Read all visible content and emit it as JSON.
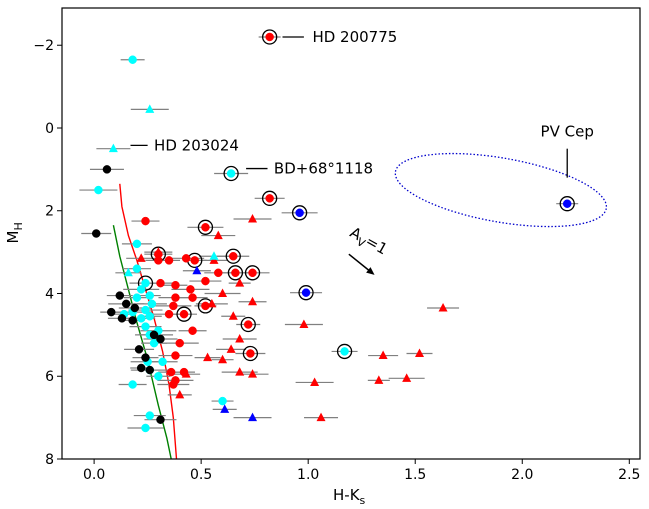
{
  "chart_data": {
    "type": "scatter",
    "xlabel": "H-K",
    "xlabel_sub": "s",
    "ylabel": "M",
    "ylabel_sub": "H",
    "xlim": [
      -0.15,
      2.55
    ],
    "ylim": [
      8,
      -2.9
    ],
    "y_inverted": true,
    "xticks": [
      0.0,
      0.5,
      1.0,
      1.5,
      2.0,
      2.5
    ],
    "xtick_labels": [
      "0.0",
      "0.5",
      "1.0",
      "1.5",
      "2.0",
      "2.5"
    ],
    "yticks": [
      -2,
      0,
      2,
      4,
      6,
      8
    ],
    "ytick_labels": [
      "−2",
      "0",
      "2",
      "4",
      "6",
      "8"
    ],
    "grid": false,
    "colors": {
      "red": "#ff0000",
      "cyan": "#00ffff",
      "blue": "#0000ff",
      "black": "#000000",
      "errorbar": "#808080",
      "red_curve": "#ff0000",
      "green_curve": "#008000",
      "ellipse": "#0000cc"
    },
    "series": [
      {
        "marker": "circle",
        "color": "red",
        "points": [
          [
            0.82,
            -2.2
          ],
          [
            0.52,
            2.4
          ],
          [
            0.65,
            3.1
          ],
          [
            0.3,
            3.05
          ],
          [
            0.47,
            3.2
          ],
          [
            0.66,
            3.5
          ],
          [
            0.74,
            3.5
          ],
          [
            0.82,
            1.7
          ],
          [
            0.3,
            3.2
          ],
          [
            0.35,
            3.2
          ],
          [
            0.43,
            3.15
          ],
          [
            0.52,
            3.7
          ],
          [
            0.58,
            3.5
          ],
          [
            0.38,
            3.8
          ],
          [
            0.45,
            3.9
          ],
          [
            0.38,
            4.1
          ],
          [
            0.46,
            4.1
          ],
          [
            0.42,
            4.5
          ],
          [
            0.52,
            4.3
          ],
          [
            0.37,
            4.3
          ],
          [
            0.35,
            4.5
          ],
          [
            0.46,
            4.9
          ],
          [
            0.72,
            4.75
          ],
          [
            0.4,
            5.2
          ],
          [
            0.38,
            5.5
          ],
          [
            0.73,
            5.45
          ],
          [
            0.36,
            5.9
          ],
          [
            0.42,
            5.9
          ],
          [
            0.38,
            6.1
          ],
          [
            0.37,
            6.2
          ],
          [
            0.24,
            2.25
          ],
          [
            0.31,
            3.75
          ]
        ],
        "circled": [
          [
            0.82,
            -2.2
          ],
          [
            0.52,
            2.4
          ],
          [
            0.65,
            3.1
          ],
          [
            0.3,
            3.05
          ],
          [
            0.47,
            3.2
          ],
          [
            0.66,
            3.5
          ],
          [
            0.74,
            3.5
          ],
          [
            0.82,
            1.7
          ],
          [
            0.42,
            4.5
          ],
          [
            0.52,
            4.3
          ],
          [
            0.72,
            4.75
          ],
          [
            0.73,
            5.45
          ]
        ]
      },
      {
        "marker": "triangle",
        "color": "red",
        "points": [
          [
            0.74,
            2.2
          ],
          [
            0.58,
            2.6
          ],
          [
            0.22,
            3.15
          ],
          [
            0.56,
            3.2
          ],
          [
            0.68,
            3.75
          ],
          [
            0.6,
            4.0
          ],
          [
            0.55,
            4.25
          ],
          [
            0.74,
            4.2
          ],
          [
            0.65,
            4.55
          ],
          [
            0.98,
            4.75
          ],
          [
            0.68,
            5.1
          ],
          [
            0.64,
            5.35
          ],
          [
            0.53,
            5.55
          ],
          [
            0.6,
            5.6
          ],
          [
            0.68,
            5.9
          ],
          [
            0.74,
            5.95
          ],
          [
            0.43,
            5.95
          ],
          [
            0.4,
            6.45
          ],
          [
            1.03,
            6.15
          ],
          [
            1.06,
            7.0
          ],
          [
            1.35,
            5.5
          ],
          [
            1.52,
            5.45
          ],
          [
            1.33,
            6.1
          ],
          [
            1.46,
            6.05
          ],
          [
            1.63,
            4.35
          ],
          [
            0.3,
            3.0
          ]
        ]
      },
      {
        "marker": "circle",
        "color": "cyan",
        "points": [
          [
            0.18,
            -1.65
          ],
          [
            0.02,
            1.5
          ],
          [
            0.64,
            1.1
          ],
          [
            0.2,
            2.8
          ],
          [
            1.17,
            5.4
          ],
          [
            0.6,
            6.6
          ],
          [
            0.24,
            7.25
          ],
          [
            0.26,
            6.95
          ],
          [
            0.18,
            6.2
          ],
          [
            0.3,
            6.0
          ],
          [
            0.26,
            5.85
          ],
          [
            0.25,
            5.65
          ],
          [
            0.32,
            5.65
          ],
          [
            0.28,
            5.2
          ],
          [
            0.26,
            5.0
          ],
          [
            0.3,
            4.9
          ],
          [
            0.24,
            4.8
          ],
          [
            0.22,
            4.6
          ],
          [
            0.26,
            4.55
          ],
          [
            0.18,
            4.45
          ],
          [
            0.24,
            4.4
          ],
          [
            0.27,
            4.25
          ],
          [
            0.2,
            4.1
          ],
          [
            0.26,
            4.05
          ],
          [
            0.22,
            3.9
          ],
          [
            0.24,
            3.75
          ],
          [
            0.2,
            3.4
          ],
          [
            0.14,
            4.5
          ]
        ],
        "circled": [
          [
            0.64,
            1.1
          ],
          [
            1.17,
            5.4
          ],
          [
            0.24,
            3.75
          ]
        ]
      },
      {
        "marker": "triangle",
        "color": "cyan",
        "points": [
          [
            0.26,
            -0.45
          ],
          [
            0.09,
            0.5
          ],
          [
            0.56,
            3.1
          ],
          [
            0.16,
            3.5
          ]
        ]
      },
      {
        "marker": "circle",
        "color": "blue",
        "points": [
          [
            2.21,
            1.83
          ],
          [
            0.96,
            2.05
          ],
          [
            0.99,
            3.98
          ]
        ],
        "circled": [
          [
            2.21,
            1.83
          ],
          [
            0.96,
            2.05
          ],
          [
            0.99,
            3.98
          ]
        ]
      },
      {
        "marker": "triangle",
        "color": "blue",
        "points": [
          [
            0.48,
            3.45
          ],
          [
            0.61,
            6.8
          ],
          [
            0.74,
            7.0
          ]
        ]
      },
      {
        "marker": "circle",
        "color": "black",
        "points": [
          [
            0.06,
            1.0
          ],
          [
            0.01,
            2.55
          ],
          [
            0.12,
            4.05
          ],
          [
            0.08,
            4.45
          ],
          [
            0.15,
            4.25
          ],
          [
            0.19,
            4.35
          ],
          [
            0.13,
            4.6
          ],
          [
            0.18,
            4.65
          ],
          [
            0.28,
            5.0
          ],
          [
            0.31,
            5.1
          ],
          [
            0.21,
            5.35
          ],
          [
            0.24,
            5.55
          ],
          [
            0.22,
            5.8
          ],
          [
            0.26,
            5.85
          ],
          [
            0.31,
            7.05
          ]
        ]
      }
    ],
    "curves": [
      {
        "color": "red_curve",
        "points": [
          [
            0.12,
            1.35
          ],
          [
            0.13,
            1.9
          ],
          [
            0.16,
            2.6
          ],
          [
            0.2,
            3.2
          ],
          [
            0.24,
            3.9
          ],
          [
            0.28,
            4.6
          ],
          [
            0.32,
            5.4
          ],
          [
            0.35,
            6.2
          ],
          [
            0.37,
            7.0
          ],
          [
            0.385,
            8.0
          ]
        ]
      },
      {
        "color": "green_curve",
        "points": [
          [
            0.09,
            2.35
          ],
          [
            0.12,
            3.1
          ],
          [
            0.16,
            3.9
          ],
          [
            0.2,
            4.7
          ],
          [
            0.25,
            5.6
          ],
          [
            0.3,
            6.7
          ],
          [
            0.34,
            7.5
          ],
          [
            0.36,
            8.0
          ]
        ]
      }
    ],
    "annotations": [
      {
        "text": "HD 200775",
        "x": 0.92,
        "y": -2.2
      },
      {
        "text": "HD 203024",
        "x": 0.28,
        "y": 0.42
      },
      {
        "text": "BD+68°1118",
        "x": 0.72,
        "y": 0.98
      },
      {
        "text": "PV Cep",
        "x": 2.21,
        "y": 0.05
      }
    ],
    "reddening_vector": {
      "label": "A",
      "label_sub": "V",
      "label_tail": "=1"
    },
    "ellipse": {
      "cx": 1.9,
      "cy": 1.5,
      "rx": 0.5,
      "ry": 0.95
    }
  }
}
